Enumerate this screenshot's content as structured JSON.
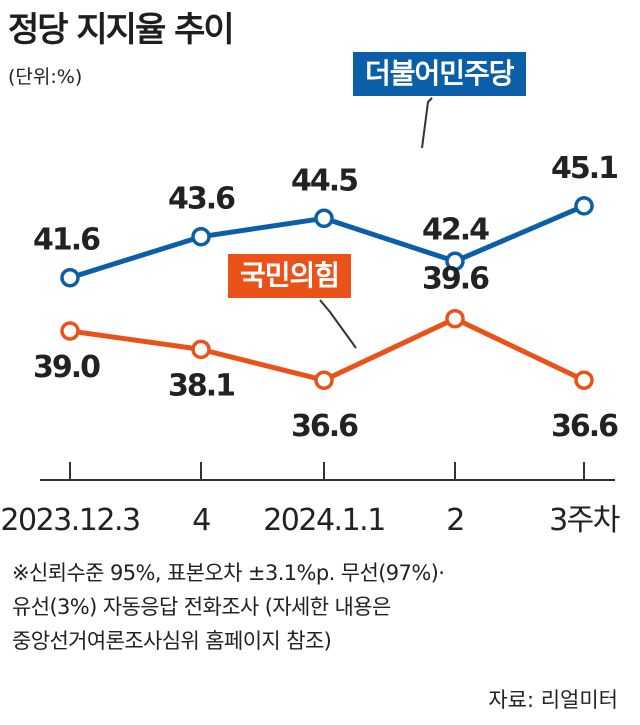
{
  "header": {
    "title": "정당 지지율 추이",
    "unit": "(단위:%)"
  },
  "colors": {
    "democratic": "#0b5ea8",
    "ppp": "#ea5219"
  },
  "chart_data": {
    "type": "line",
    "categories": [
      "2023.12.3",
      "4",
      "2024.1.1",
      "2",
      "3주차"
    ],
    "series": [
      {
        "name": "더불어민주당",
        "values": [
          41.6,
          43.6,
          44.5,
          42.4,
          45.1
        ]
      },
      {
        "name": "국민의힘",
        "values": [
          39.0,
          38.1,
          36.6,
          39.6,
          36.6
        ]
      }
    ],
    "value_labels": [
      [
        "41.6",
        "43.6",
        "44.5",
        "42.4",
        "45.1"
      ],
      [
        "39.0",
        "38.1",
        "36.6",
        "39.6",
        "36.6"
      ]
    ],
    "grid": false,
    "legend": "callout labels"
  },
  "notes": [
    "※신뢰수준 95%, 표본오차 ±3.1%p. 무선(97%)·",
    "유선(3%) 자동응답 전화조사 (자세한 내용은",
    "중앙선거여론조사심위 홈페이지 참조)"
  ],
  "source": "자료: 리얼미터"
}
